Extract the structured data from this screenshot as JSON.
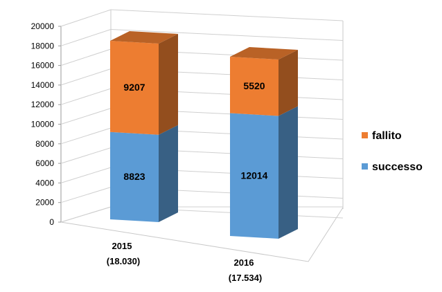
{
  "chart_data": {
    "type": "bar",
    "stacked": true,
    "three_d": true,
    "categories": [
      "2015",
      "2016"
    ],
    "category_subtitles": [
      "(18.030)",
      "(17.534)"
    ],
    "series": [
      {
        "name": "successo",
        "values": [
          8823,
          12014
        ],
        "color": "#5B9BD5"
      },
      {
        "name": "fallito",
        "values": [
          9207,
          5520
        ],
        "color": "#ED7D31"
      }
    ],
    "ylim": [
      0,
      20000
    ],
    "yticks": [
      "0",
      "2000",
      "4000",
      "6000",
      "8000",
      "10000",
      "12000",
      "14000",
      "16000",
      "18000",
      "20000"
    ],
    "grid": true,
    "legend_position": "right",
    "data_labels": true
  }
}
